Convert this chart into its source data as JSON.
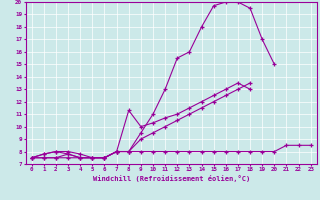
{
  "bg_color": "#cce9e9",
  "line_color": "#990099",
  "xlim": [
    -0.5,
    23.5
  ],
  "ylim": [
    7,
    20
  ],
  "xlabel": "Windchill (Refroidissement éolien,°C)",
  "line1_x": [
    0,
    1,
    2,
    3,
    4,
    5,
    6,
    7,
    8,
    9,
    10,
    11,
    12,
    13,
    14,
    15,
    16,
    17,
    18,
    19,
    20
  ],
  "line1_y": [
    7.5,
    7.8,
    8.0,
    8.0,
    7.8,
    7.5,
    7.5,
    8.0,
    8.0,
    9.5,
    11.0,
    13.0,
    15.5,
    16.0,
    18.0,
    19.7,
    20.0,
    20.0,
    19.5,
    17.0,
    15.0
  ],
  "line2_x": [
    0,
    1,
    2,
    3,
    4,
    5,
    6,
    7,
    8,
    9,
    10,
    11,
    12,
    13,
    14,
    15,
    16,
    17,
    18,
    19,
    20
  ],
  "line2_y": [
    7.5,
    7.8,
    8.0,
    7.8,
    7.5,
    7.5,
    7.5,
    8.0,
    11.3,
    10.0,
    10.3,
    10.7,
    11.0,
    11.5,
    12.0,
    12.5,
    13.0,
    13.5,
    13.0,
    null,
    null
  ],
  "line3_x": [
    0,
    1,
    2,
    3,
    4,
    5,
    6,
    7,
    8,
    9,
    10,
    11,
    12,
    13,
    14,
    15,
    16,
    17,
    18,
    19,
    20
  ],
  "line3_y": [
    7.5,
    7.5,
    7.5,
    7.8,
    7.5,
    7.5,
    7.5,
    8.0,
    8.0,
    9.0,
    9.5,
    10.0,
    10.5,
    11.0,
    11.5,
    12.0,
    12.5,
    13.0,
    13.5,
    null,
    null
  ],
  "line4_x": [
    0,
    1,
    2,
    3,
    4,
    5,
    6,
    7,
    8,
    9,
    10,
    11,
    12,
    13,
    14,
    15,
    16,
    17,
    18,
    19,
    20,
    21,
    22,
    23
  ],
  "line4_y": [
    7.5,
    7.5,
    7.5,
    7.5,
    7.5,
    7.5,
    7.5,
    8.0,
    8.0,
    8.0,
    8.0,
    8.0,
    8.0,
    8.0,
    8.0,
    8.0,
    8.0,
    8.0,
    8.0,
    8.0,
    8.0,
    8.5,
    8.5,
    8.5
  ]
}
